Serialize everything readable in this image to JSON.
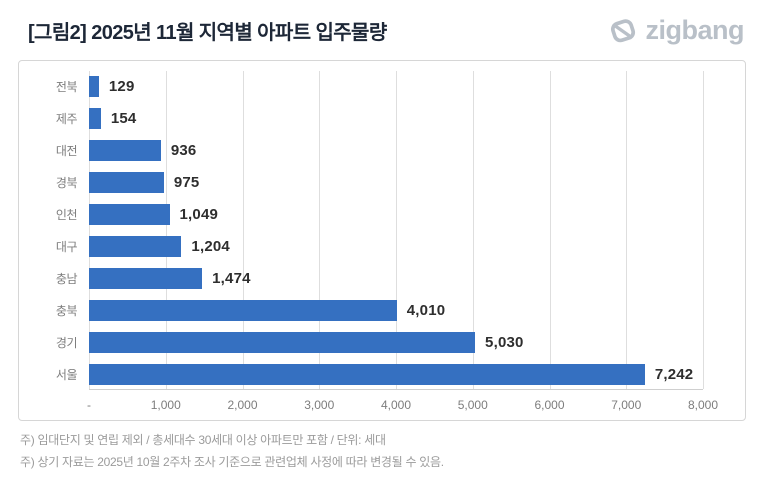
{
  "header": {
    "title": "[그림2] 2025년 11월 지역별 아파트 입주물량",
    "logo_text": "zigbang"
  },
  "chart_data": {
    "type": "bar",
    "orientation": "horizontal",
    "title": "2025년 11월 지역별 아파트 입주물량",
    "categories": [
      "전북",
      "제주",
      "대전",
      "경북",
      "인천",
      "대구",
      "충남",
      "충북",
      "경기",
      "서울"
    ],
    "values": [
      129,
      154,
      936,
      975,
      1049,
      1204,
      1474,
      4010,
      5030,
      7242
    ],
    "value_labels": [
      "129",
      "154",
      "936",
      "975",
      "1,049",
      "1,204",
      "1,474",
      "4,010",
      "5,030",
      "7,242"
    ],
    "x_ticks": [
      "-",
      "1,000",
      "2,000",
      "3,000",
      "4,000",
      "5,000",
      "6,000",
      "7,000",
      "8,000"
    ],
    "xlim": [
      0,
      8000
    ],
    "grid": true,
    "legend": "none",
    "bar_color": "#3570c1",
    "unit": "세대"
  },
  "footer": {
    "note1": "주) 임대단지 및 연립 제외 / 총세대수 30세대 이상 아파트만 포함 / 단위: 세대",
    "note2": "주) 상기 자료는 2025년 10월 2주차 조사 기준으로 관련업체 사정에 따라 변경될 수 있음."
  }
}
